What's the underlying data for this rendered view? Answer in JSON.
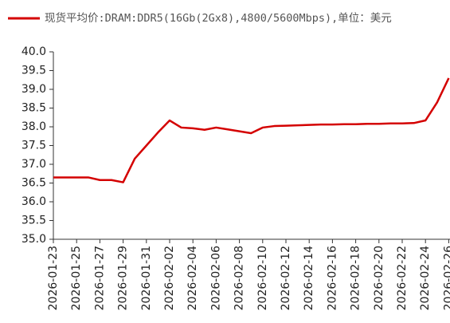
{
  "chart_data": {
    "type": "line",
    "categories": [
      "2026-01-23",
      null,
      "2026-01-25",
      null,
      "2026-01-27",
      null,
      "2026-01-29",
      null,
      "2026-01-31",
      null,
      "2026-02-02",
      null,
      "2026-02-04",
      null,
      "2026-02-06",
      null,
      "2026-02-08",
      null,
      "2026-02-10",
      null,
      "2026-02-12",
      null,
      "2026-02-14",
      null,
      "2026-02-16",
      null,
      "2026-02-18",
      null,
      "2026-02-20",
      null,
      "2026-02-22",
      null,
      "2026-02-24",
      null,
      "2026-02-26"
    ],
    "series": [
      {
        "name": "现货平均价:DRAM:DDR5(16Gb(2Gx8),4800/5600Mbps),单位：美元",
        "color": "#d40000",
        "values": [
          36.65,
          36.65,
          36.65,
          36.65,
          36.58,
          36.58,
          36.52,
          37.15,
          37.5,
          37.85,
          38.17,
          37.98,
          37.96,
          37.92,
          37.98,
          37.93,
          37.88,
          37.83,
          37.98,
          38.02,
          38.03,
          38.04,
          38.05,
          38.06,
          38.06,
          38.07,
          38.07,
          38.08,
          38.08,
          38.09,
          38.09,
          38.1,
          38.17,
          38.65,
          39.3
        ]
      }
    ],
    "ylim": [
      35,
      40
    ],
    "yticks": [
      {
        "value": 35,
        "label": "35.0"
      },
      {
        "value": 35.5,
        "label": "35.5"
      },
      {
        "value": 36,
        "label": "36.0"
      },
      {
        "value": 36.5,
        "label": "36.5"
      },
      {
        "value": 37,
        "label": "37.0"
      },
      {
        "value": 37.5,
        "label": "37.5"
      },
      {
        "value": 38,
        "label": "38.0"
      },
      {
        "value": 38.5,
        "label": "38.5"
      },
      {
        "value": 39,
        "label": "39.0"
      },
      {
        "value": 39.5,
        "label": "39.5"
      },
      {
        "value": 40,
        "label": "40.0"
      }
    ],
    "legend": "top-left"
  }
}
